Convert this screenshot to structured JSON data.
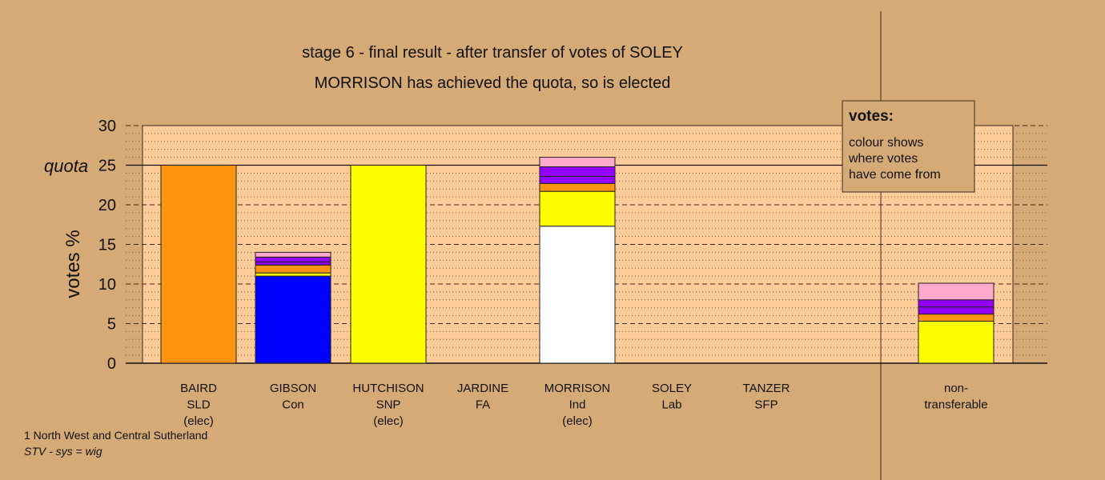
{
  "chart_data": {
    "type": "bar",
    "title": "stage 6 - final result - after transfer of votes of SOLEY",
    "subtitle": "MORRISON has achieved the quota, so is elected",
    "ylabel": "votes %",
    "ylim": [
      0,
      30
    ],
    "yticks": [
      0,
      5,
      10,
      15,
      20,
      25,
      30
    ],
    "quota_label": "quota",
    "quota_value": 25,
    "grid": true,
    "legend": {
      "placement": "top-right",
      "title": "votes:",
      "lines": [
        "colour shows",
        "where votes",
        "have come from"
      ]
    },
    "categories": [
      {
        "lines": [
          "BAIRD",
          "SLD",
          "(elec)"
        ]
      },
      {
        "lines": [
          "GIBSON",
          "Con"
        ]
      },
      {
        "lines": [
          "HUTCHISON",
          "SNP",
          "(elec)"
        ]
      },
      {
        "lines": [
          "JARDINE",
          "FA"
        ]
      },
      {
        "lines": [
          "MORRISON",
          "Ind",
          "(elec)"
        ]
      },
      {
        "lines": [
          "SOLEY",
          "Lab"
        ]
      },
      {
        "lines": [
          "TANZER",
          "SFP"
        ]
      },
      {
        "lines": [
          "non-",
          "transferable"
        ]
      }
    ],
    "stacks": [
      [
        {
          "value": 25.0,
          "color": "#ff9410"
        }
      ],
      [
        {
          "value": 11.0,
          "color": "#0000ff"
        },
        {
          "value": 0.4,
          "color": "#ffff00"
        },
        {
          "value": 1.0,
          "color": "#ff9410"
        },
        {
          "value": 0.4,
          "color": "#9400ff"
        },
        {
          "value": 0.6,
          "color": "#9400ff"
        },
        {
          "value": 0.6,
          "color": "#ffaacc"
        }
      ],
      [
        {
          "value": 25.0,
          "color": "#ffff00"
        }
      ],
      [],
      [
        {
          "value": 17.3,
          "color": "#ffffff"
        },
        {
          "value": 4.4,
          "color": "#ffff00"
        },
        {
          "value": 1.0,
          "color": "#ff9410"
        },
        {
          "value": 0.9,
          "color": "#9400ff"
        },
        {
          "value": 1.2,
          "color": "#9400ff"
        },
        {
          "value": 1.2,
          "color": "#ffaacc"
        }
      ],
      [],
      [],
      [
        {
          "value": 5.3,
          "color": "#ffff00"
        },
        {
          "value": 0.9,
          "color": "#ff9410"
        },
        {
          "value": 0.9,
          "color": "#9400ff"
        },
        {
          "value": 0.9,
          "color": "#9400ff"
        },
        {
          "value": 2.1,
          "color": "#ffaacc"
        }
      ]
    ]
  },
  "footer": {
    "line1": "1 North West and Central Sutherland",
    "line2": "STV - sys = wig"
  },
  "colors": {
    "page_background": "#d5aa76",
    "plot_background": "#ffcc99"
  }
}
